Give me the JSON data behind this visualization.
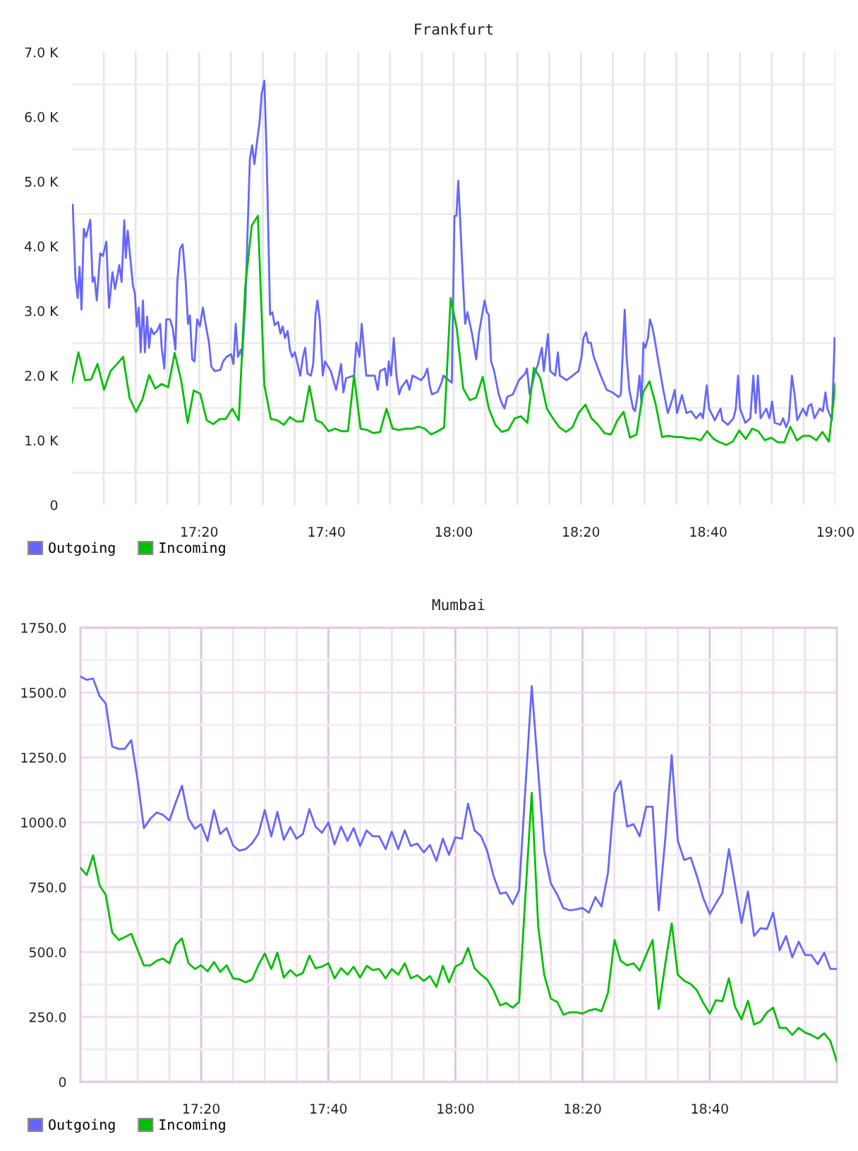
{
  "chart_data": [
    {
      "type": "line",
      "title": "Frankfurt",
      "xlim": [
        17,
        19
      ],
      "ylim": [
        0,
        7
      ],
      "grid": true,
      "legend": "bottom left",
      "xticks": [
        {
          "value": 17.0833,
          "label": null
        },
        {
          "value": 17.1667,
          "label": null
        },
        {
          "value": 17.25,
          "label": null
        },
        {
          "value": 17.3333,
          "label": "17:20"
        },
        {
          "value": 17.4167,
          "label": null
        },
        {
          "value": 17.5,
          "label": null
        },
        {
          "value": 17.5833,
          "label": null
        },
        {
          "value": 17.6667,
          "label": "17:40"
        },
        {
          "value": 17.75,
          "label": null
        },
        {
          "value": 17.8333,
          "label": null
        },
        {
          "value": 17.9167,
          "label": null
        },
        {
          "value": 18,
          "label": "18:00"
        },
        {
          "value": 18.0833,
          "label": null
        },
        {
          "value": 18.1667,
          "label": null
        },
        {
          "value": 18.25,
          "label": null
        },
        {
          "value": 18.3333,
          "label": "18:20"
        },
        {
          "value": 18.4167,
          "label": null
        },
        {
          "value": 18.5,
          "label": null
        },
        {
          "value": 18.5833,
          "label": null
        },
        {
          "value": 18.6667,
          "label": "18:40"
        },
        {
          "value": 18.75,
          "label": null
        },
        {
          "value": 18.8333,
          "label": null
        },
        {
          "value": 18.9167,
          "label": null
        },
        {
          "value": 19,
          "label": "19:00"
        }
      ],
      "yticks": [
        0,
        {
          "value": 0.5,
          "label": null
        },
        {
          "value": 1,
          "label": "1.0 K"
        },
        {
          "value": 1.5,
          "label": null
        },
        {
          "value": 2,
          "label": "2.0 K"
        },
        {
          "value": 2.5,
          "label": null
        },
        {
          "value": 3,
          "label": "3.0 K"
        },
        {
          "value": 3.5,
          "label": null
        },
        {
          "value": 4,
          "label": "4.0 K"
        },
        {
          "value": 4.5,
          "label": null
        },
        {
          "value": 5,
          "label": "5.0 K"
        },
        {
          "value": 5.5,
          "label": null
        },
        {
          "value": 6,
          "label": "6.0 K"
        },
        {
          "value": 6.5,
          "label": null
        },
        {
          "value": 7,
          "label": "7.0 K"
        }
      ],
      "series": [
        {
          "name": "Outgoing",
          "color": "#6666ff",
          "x": [
            17.002,
            17.009,
            17.015,
            17.02,
            17.025,
            17.031,
            17.037,
            17.048,
            17.054,
            17.059,
            17.065,
            17.074,
            17.081,
            17.09,
            17.097,
            17.106,
            17.113,
            17.124,
            17.13,
            17.137,
            17.141,
            17.146,
            17.154,
            17.16,
            17.165,
            17.17,
            17.175,
            17.18,
            17.186,
            17.191,
            17.197,
            17.202,
            17.207,
            17.214,
            17.223,
            17.231,
            17.235,
            17.242,
            17.247,
            17.257,
            17.264,
            17.271,
            17.276,
            17.283,
            17.29,
            17.298,
            17.304,
            17.309,
            17.315,
            17.321,
            17.328,
            17.335,
            17.343,
            17.352,
            17.359,
            17.365,
            17.374,
            17.389,
            17.396,
            17.405,
            17.417,
            17.423,
            17.429,
            17.435,
            17.442,
            17.446,
            17.454,
            17.466,
            17.472,
            17.478,
            17.485,
            17.491,
            17.497,
            17.504,
            17.51,
            17.519,
            17.525,
            17.531,
            17.54,
            17.546,
            17.552,
            17.558,
            17.565,
            17.571,
            17.577,
            17.584,
            17.598,
            17.605,
            17.611,
            17.617,
            17.626,
            17.632,
            17.638,
            17.643,
            17.649,
            17.657,
            17.663,
            17.678,
            17.692,
            17.697,
            17.705,
            17.711,
            17.718,
            17.739,
            17.745,
            17.753,
            17.759,
            17.765,
            17.771,
            17.793,
            17.801,
            17.807,
            17.82,
            17.825,
            17.83,
            17.836,
            17.843,
            17.85,
            17.857,
            17.863,
            17.877,
            17.884,
            17.892,
            17.915,
            17.924,
            17.931,
            17.937,
            17.943,
            17.958,
            17.968,
            17.973,
            17.995,
            18.002,
            18.007,
            18.012,
            18.017,
            18.022,
            18.03,
            18.036,
            18.048,
            18.059,
            18.066,
            18.081,
            18.087,
            18.092,
            18.098,
            18.106,
            18.118,
            18.127,
            18.133,
            18.14,
            18.155,
            18.171,
            18.187,
            18.192,
            18.199,
            18.214,
            18.22,
            18.231,
            18.236,
            18.247,
            18.253,
            18.266,
            18.273,
            18.278,
            18.296,
            18.327,
            18.335,
            18.34,
            18.347,
            18.352,
            18.359,
            18.367,
            18.385,
            18.401,
            18.416,
            18.432,
            18.438,
            18.443,
            18.448,
            18.453,
            18.46,
            18.47,
            18.475,
            18.481,
            18.487,
            18.492,
            18.497,
            18.502,
            18.509,
            18.514,
            18.52,
            18.526,
            18.536,
            18.549,
            18.561,
            18.573,
            18.579,
            18.585,
            18.598,
            18.61,
            18.622,
            18.635,
            18.647,
            18.653,
            18.663,
            18.669,
            18.684,
            18.699,
            18.704,
            18.718,
            18.733,
            18.739,
            18.745,
            18.75,
            18.764,
            18.777,
            18.785,
            18.791,
            18.797,
            18.804,
            18.819,
            18.827,
            18.834,
            18.841,
            18.856,
            18.863,
            18.871,
            18.878,
            18.886,
            18.893,
            18.9,
            18.915,
            18.924,
            18.93,
            18.937,
            18.945,
            18.959,
            18.967,
            18.974,
            18.979,
            18.991,
            18.998
          ],
          "values": [
            4.64,
            3.52,
            3.2,
            3.68,
            3.02,
            4.27,
            4.14,
            4.41,
            3.45,
            3.52,
            3.16,
            3.89,
            3.85,
            4.07,
            3.05,
            3.6,
            3.34,
            3.71,
            3.45,
            4.4,
            3.82,
            4.24,
            3.74,
            3.38,
            3.27,
            2.76,
            3.05,
            2.36,
            3.16,
            2.36,
            2.91,
            2.43,
            2.73,
            2.64,
            2.69,
            2.8,
            2.43,
            2.11,
            2.87,
            2.87,
            2.73,
            2.4,
            3.45,
            3.96,
            4.03,
            3.45,
            2.8,
            2.93,
            2.25,
            2.22,
            2.87,
            2.76,
            3.05,
            2.73,
            2.51,
            2.14,
            2.07,
            2.09,
            2.22,
            2.29,
            2.33,
            2.18,
            2.8,
            2.29,
            2.4,
            2.29,
            3.09,
            5.34,
            5.56,
            5.27,
            5.63,
            5.89,
            6.36,
            6.56,
            5.41,
            2.94,
            2.98,
            2.78,
            2.83,
            2.65,
            2.76,
            2.58,
            2.69,
            2.4,
            2.29,
            2.36,
            2.0,
            2.29,
            2.43,
            2.03,
            2.0,
            2.18,
            2.94,
            3.16,
            2.87,
            2.0,
            2.22,
            2.07,
            1.78,
            1.93,
            2.18,
            1.74,
            1.96,
            2.0,
            2.51,
            2.29,
            2.8,
            2.4,
            2.0,
            2.0,
            1.78,
            2.07,
            2.11,
            1.85,
            2.22,
            2.0,
            2.58,
            2.0,
            1.71,
            1.82,
            1.93,
            1.78,
            2.0,
            1.93,
            2.0,
            2.11,
            1.85,
            1.71,
            1.75,
            1.89,
            2.0,
            1.89,
            4.47,
            4.47,
            5.01,
            4.4,
            3.74,
            2.8,
            2.98,
            2.65,
            2.25,
            2.65,
            3.16,
            2.98,
            2.94,
            2.22,
            2.07,
            1.71,
            1.56,
            1.49,
            1.67,
            1.71,
            1.93,
            2.03,
            2.11,
            1.71,
            2.07,
            2.16,
            2.43,
            2.07,
            2.64,
            2.07,
            2.0,
            2.36,
            2.0,
            1.93,
            2.07,
            2.29,
            2.58,
            2.67,
            2.51,
            2.51,
            2.29,
            2.0,
            1.78,
            1.74,
            1.67,
            1.71,
            2.36,
            3.02,
            2.29,
            1.78,
            1.49,
            1.45,
            1.67,
            2.0,
            1.56,
            2.51,
            2.43,
            2.58,
            2.87,
            2.76,
            2.58,
            2.22,
            1.78,
            1.42,
            1.64,
            1.78,
            1.42,
            1.7,
            1.42,
            1.45,
            1.34,
            1.42,
            1.34,
            1.85,
            1.49,
            1.31,
            1.49,
            1.31,
            1.24,
            1.34,
            1.49,
            2.0,
            1.49,
            1.27,
            1.34,
            2.0,
            1.42,
            2.0,
            1.34,
            1.49,
            1.34,
            1.6,
            1.27,
            1.24,
            1.34,
            1.2,
            1.31,
            2.0,
            1.71,
            1.31,
            1.49,
            1.38,
            1.53,
            1.56,
            1.34,
            1.49,
            1.45,
            1.74,
            1.49,
            1.31,
            2.58
          ]
        },
        {
          "name": "Incoming",
          "color": "#00c000",
          "x": [
            17.0,
            17.017,
            17.034,
            17.05,
            17.067,
            17.084,
            17.101,
            17.118,
            17.134,
            17.151,
            17.168,
            17.185,
            17.202,
            17.218,
            17.235,
            17.252,
            17.269,
            17.286,
            17.303,
            17.319,
            17.336,
            17.353,
            17.37,
            17.387,
            17.403,
            17.42,
            17.437,
            17.454,
            17.471,
            17.487,
            17.504,
            17.521,
            17.538,
            17.555,
            17.571,
            17.588,
            17.605,
            17.622,
            17.639,
            17.655,
            17.672,
            17.689,
            17.706,
            17.723,
            17.739,
            17.756,
            17.773,
            17.79,
            17.807,
            17.824,
            17.84,
            17.857,
            17.874,
            17.891,
            17.908,
            17.924,
            17.941,
            17.958,
            17.975,
            17.992,
            18.008,
            18.025,
            18.042,
            18.059,
            18.076,
            18.092,
            18.109,
            18.126,
            18.143,
            18.16,
            18.176,
            18.193,
            18.21,
            18.227,
            18.244,
            18.261,
            18.277,
            18.294,
            18.311,
            18.328,
            18.345,
            18.361,
            18.378,
            18.395,
            18.412,
            18.429,
            18.445,
            18.462,
            18.479,
            18.496,
            18.513,
            18.529,
            18.546,
            18.563,
            18.58,
            18.597,
            18.613,
            18.63,
            18.647,
            18.664,
            18.681,
            18.697,
            18.714,
            18.731,
            18.748,
            18.765,
            18.782,
            18.798,
            18.815,
            18.832,
            18.849,
            18.866,
            18.882,
            18.899,
            18.916,
            18.933,
            18.95,
            18.966,
            18.983,
            19.0
          ],
          "values": [
            1.89,
            2.36,
            1.93,
            1.94,
            2.18,
            1.78,
            2.07,
            2.18,
            2.29,
            1.65,
            1.44,
            1.64,
            2.01,
            1.8,
            1.87,
            1.82,
            2.35,
            1.93,
            1.27,
            1.77,
            1.72,
            1.31,
            1.25,
            1.33,
            1.33,
            1.49,
            1.31,
            3.38,
            4.32,
            4.47,
            1.85,
            1.33,
            1.31,
            1.24,
            1.36,
            1.29,
            1.29,
            1.84,
            1.31,
            1.27,
            1.14,
            1.18,
            1.14,
            1.14,
            2.0,
            1.18,
            1.16,
            1.11,
            1.13,
            1.49,
            1.18,
            1.16,
            1.18,
            1.18,
            1.21,
            1.18,
            1.09,
            1.14,
            1.2,
            3.2,
            2.73,
            1.8,
            1.62,
            1.66,
            1.98,
            1.49,
            1.24,
            1.13,
            1.16,
            1.34,
            1.37,
            1.27,
            2.12,
            1.96,
            1.49,
            1.33,
            1.2,
            1.13,
            1.2,
            1.43,
            1.55,
            1.34,
            1.24,
            1.11,
            1.09,
            1.31,
            1.44,
            1.04,
            1.09,
            1.74,
            1.91,
            1.56,
            1.05,
            1.07,
            1.05,
            1.05,
            1.03,
            1.03,
            1.0,
            1.14,
            1.02,
            0.97,
            0.93,
            0.98,
            1.15,
            1.02,
            1.18,
            1.14,
            1.0,
            1.04,
            0.97,
            0.97,
            1.21,
            1.0,
            1.07,
            1.07,
            1.0,
            1.13,
            0.98,
            1.87
          ]
        }
      ]
    },
    {
      "type": "line",
      "title": "Mumbai",
      "xlim": [
        17.0167,
        19
      ],
      "ylim": [
        0,
        1750
      ],
      "grid": true,
      "legend": "bottom left",
      "xticks": [
        {
          "value": 17.0833,
          "label": null
        },
        {
          "value": 17.1667,
          "label": null
        },
        {
          "value": 17.25,
          "label": null
        },
        {
          "value": 17.3333,
          "label": "17:20"
        },
        {
          "value": 17.4167,
          "label": null
        },
        {
          "value": 17.5,
          "label": null
        },
        {
          "value": 17.5833,
          "label": null
        },
        {
          "value": 17.6667,
          "label": "17:40"
        },
        {
          "value": 17.75,
          "label": null
        },
        {
          "value": 17.8333,
          "label": null
        },
        {
          "value": 17.9167,
          "label": null
        },
        {
          "value": 18,
          "label": "18:00"
        },
        {
          "value": 18.0833,
          "label": null
        },
        {
          "value": 18.1667,
          "label": null
        },
        {
          "value": 18.25,
          "label": null
        },
        {
          "value": 18.3333,
          "label": "18:20"
        },
        {
          "value": 18.4167,
          "label": null
        },
        {
          "value": 18.5,
          "label": null
        },
        {
          "value": 18.5833,
          "label": null
        },
        {
          "value": 18.6667,
          "label": "18:40"
        },
        {
          "value": 18.75,
          "label": null
        },
        {
          "value": 18.8333,
          "label": null
        },
        {
          "value": 18.9167,
          "label": null
        }
      ],
      "yticks": [
        0,
        {
          "value": 125,
          "label": null
        },
        {
          "value": 250,
          "label": "250.0"
        },
        {
          "value": 375,
          "label": null
        },
        {
          "value": 500,
          "label": "500.0"
        },
        {
          "value": 625,
          "label": null
        },
        {
          "value": 750,
          "label": "750.0"
        },
        {
          "value": 875,
          "label": null
        },
        {
          "value": 1000,
          "label": "1000.0"
        },
        {
          "value": 1125,
          "label": null
        },
        {
          "value": 1250,
          "label": "1250.0"
        },
        {
          "value": 1375,
          "label": null
        },
        {
          "value": 1500,
          "label": "1500.0"
        },
        {
          "value": 1625,
          "label": null
        },
        {
          "value": 1750,
          "label": "1750.0"
        }
      ],
      "x": [
        17.017,
        17.033,
        17.05,
        17.067,
        17.083,
        17.1,
        17.117,
        17.133,
        17.15,
        17.167,
        17.183,
        17.2,
        17.217,
        17.233,
        17.25,
        17.267,
        17.283,
        17.3,
        17.317,
        17.333,
        17.35,
        17.367,
        17.383,
        17.4,
        17.417,
        17.433,
        17.45,
        17.467,
        17.483,
        17.5,
        17.517,
        17.533,
        17.55,
        17.567,
        17.583,
        17.6,
        17.617,
        17.633,
        17.65,
        17.667,
        17.683,
        17.7,
        17.717,
        17.733,
        17.75,
        17.767,
        17.783,
        17.8,
        17.817,
        17.833,
        17.85,
        17.867,
        17.883,
        17.9,
        17.917,
        17.933,
        17.95,
        17.967,
        17.983,
        18,
        18.017,
        18.033,
        18.05,
        18.067,
        18.083,
        18.1,
        18.117,
        18.133,
        18.15,
        18.167,
        18.183,
        18.2,
        18.217,
        18.233,
        18.25,
        18.267,
        18.283,
        18.3,
        18.317,
        18.333,
        18.35,
        18.367,
        18.383,
        18.4,
        18.417,
        18.433,
        18.45,
        18.467,
        18.483,
        18.5,
        18.517,
        18.533,
        18.55,
        18.567,
        18.583,
        18.6,
        18.617,
        18.633,
        18.65,
        18.667,
        18.683,
        18.7,
        18.717,
        18.733,
        18.75,
        18.767,
        18.783,
        18.8,
        18.817,
        18.833,
        18.85,
        18.867,
        18.883,
        18.9,
        18.917,
        18.933,
        18.95,
        18.967,
        18.983,
        19
      ],
      "series": [
        {
          "name": "Outgoing",
          "color": "#6666ff",
          "values": [
            1562,
            1549,
            1554,
            1486,
            1458,
            1292,
            1283,
            1283,
            1317,
            1159,
            978,
            1014,
            1038,
            1029,
            1007,
            1078,
            1141,
            1014,
            975,
            993,
            929,
            1047,
            955,
            978,
            911,
            891,
            897,
            920,
            955,
            1047,
            946,
            1040,
            933,
            982,
            937,
            955,
            1051,
            984,
            960,
            1000,
            915,
            984,
            929,
            978,
            909,
            969,
            947,
            946,
            897,
            964,
            897,
            969,
            909,
            918,
            884,
            913,
            851,
            937,
            875,
            942,
            937,
            1072,
            969,
            947,
            891,
            793,
            725,
            730,
            685,
            739,
            1123,
            1525,
            1196,
            888,
            765,
            721,
            670,
            661,
            665,
            670,
            652,
            712,
            676,
            806,
            1114,
            1159,
            984,
            993,
            946,
            1060,
            1060,
            661,
            933,
            1259,
            929,
            855,
            864,
            793,
            707,
            647,
            688,
            728,
            897,
            761,
            612,
            734,
            562,
            592,
            589,
            652,
            507,
            562,
            480,
            540,
            489,
            489,
            453,
            498,
            435,
            435
          ]
        },
        {
          "name": "Incoming",
          "color": "#00c000",
          "values": [
            824,
            797,
            873,
            757,
            721,
            576,
            547,
            558,
            571,
            507,
            449,
            449,
            467,
            475,
            457,
            529,
            553,
            457,
            435,
            449,
            426,
            462,
            424,
            449,
            399,
            395,
            384,
            395,
            449,
            495,
            435,
            498,
            402,
            431,
            408,
            420,
            486,
            438,
            444,
            457,
            399,
            438,
            413,
            444,
            402,
            447,
            431,
            435,
            399,
            435,
            413,
            457,
            399,
            411,
            389,
            408,
            366,
            447,
            384,
            444,
            458,
            516,
            438,
            413,
            395,
            353,
            295,
            304,
            286,
            308,
            707,
            1114,
            598,
            411,
            321,
            308,
            259,
            268,
            268,
            263,
            275,
            281,
            272,
            344,
            547,
            467,
            449,
            457,
            429,
            489,
            547,
            281,
            453,
            611,
            413,
            389,
            377,
            353,
            304,
            263,
            315,
            311,
            399,
            290,
            241,
            312,
            221,
            232,
            268,
            286,
            208,
            208,
            181,
            208,
            190,
            181,
            167,
            187,
            158,
            78
          ]
        }
      ]
    }
  ]
}
